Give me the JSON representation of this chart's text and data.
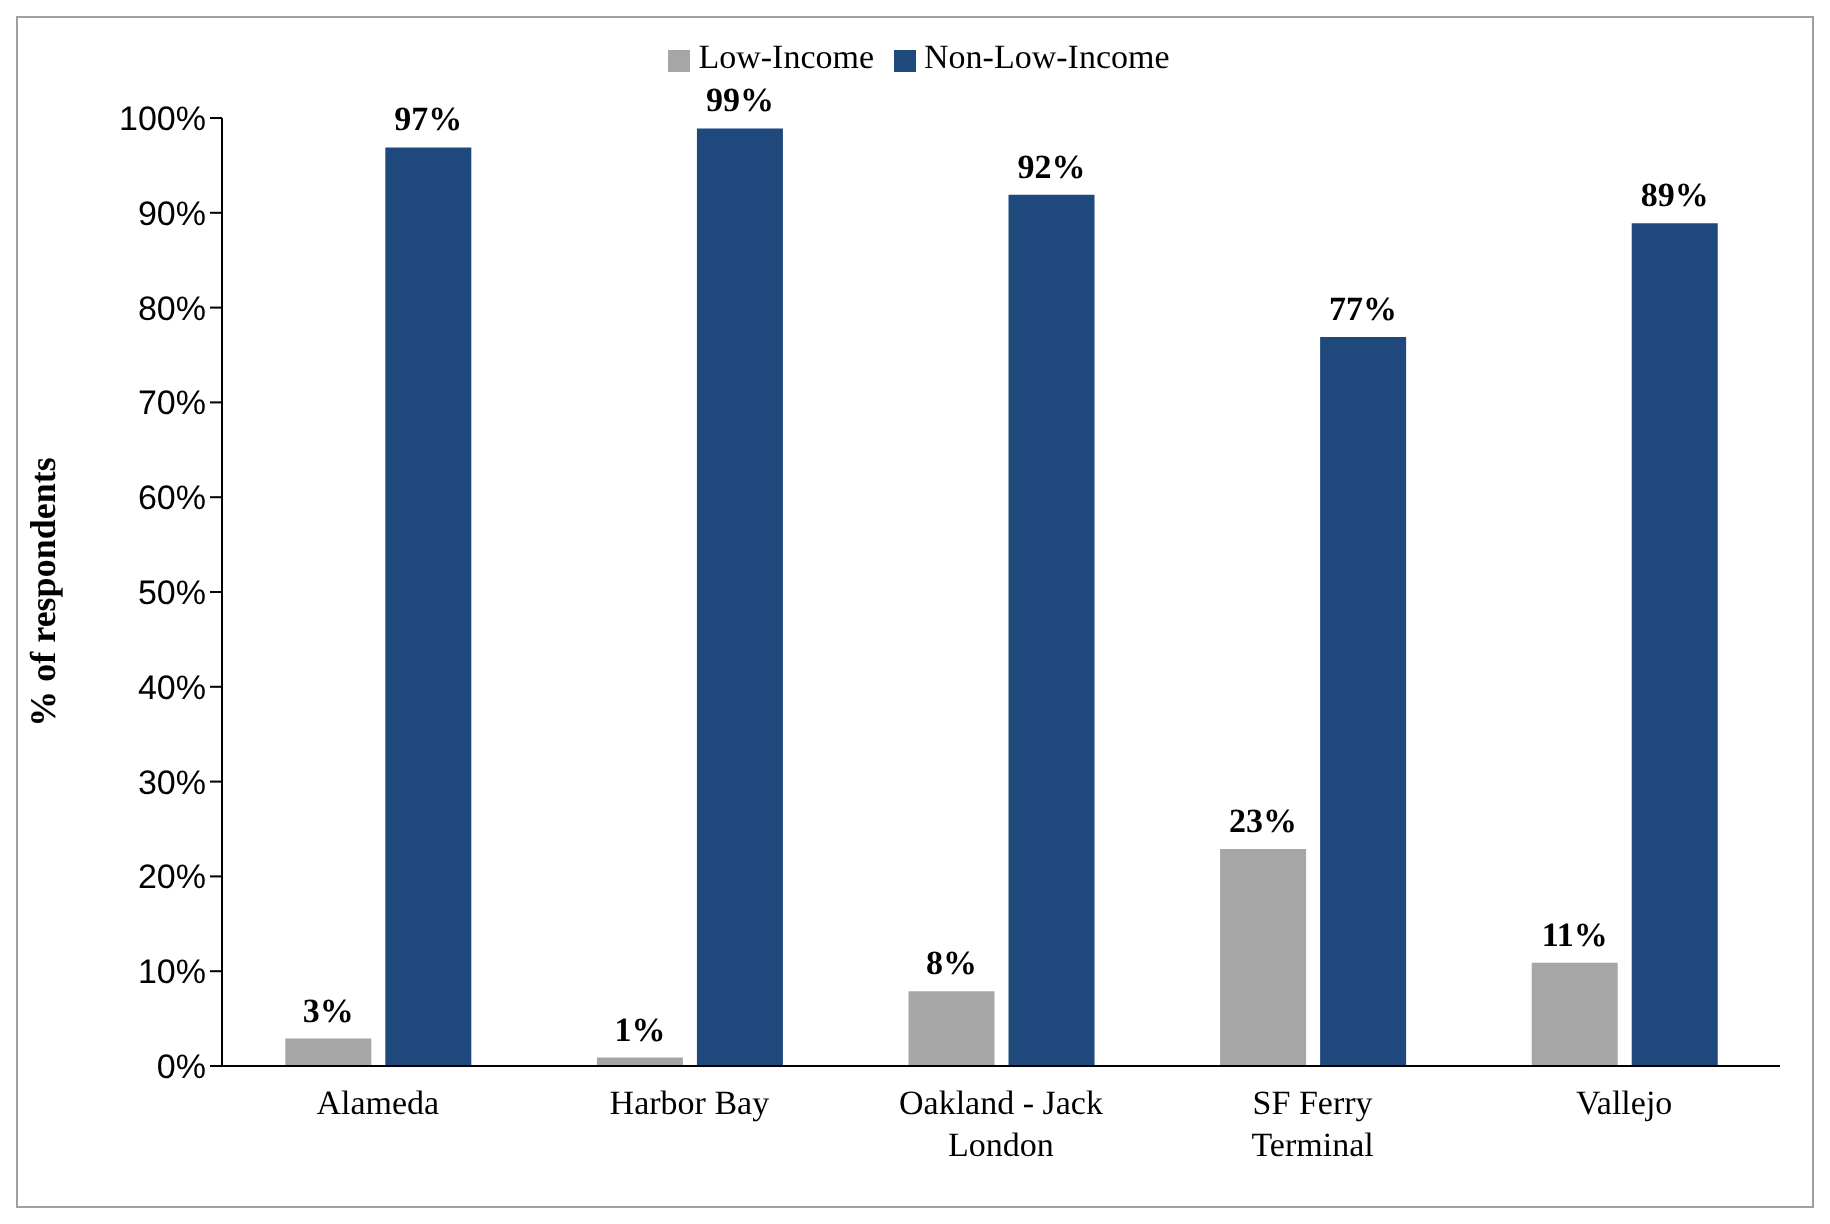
{
  "chart_data": {
    "type": "bar",
    "ylabel": "% of respondents",
    "categories": [
      "Alameda",
      "Harbor Bay",
      "Oakland - Jack London",
      "SF Ferry Terminal",
      "Vallejo"
    ],
    "series": [
      {
        "name": "Low-Income",
        "color": "#a6a6a6",
        "values": [
          3,
          1,
          8,
          23,
          11
        ],
        "value_labels": [
          "3%",
          "1%",
          "8%",
          "23%",
          "11%"
        ]
      },
      {
        "name": "Non-Low-Income",
        "color": "#1f497d",
        "values": [
          97,
          99,
          92,
          77,
          89
        ],
        "value_labels": [
          "97%",
          "99%",
          "92%",
          "77%",
          "89%"
        ]
      }
    ],
    "ylim": [
      0,
      100
    ],
    "yticks": [
      {
        "value": 0,
        "label": "0%"
      },
      {
        "value": 10,
        "label": "10%"
      },
      {
        "value": 20,
        "label": "20%"
      },
      {
        "value": 30,
        "label": "30%"
      },
      {
        "value": 40,
        "label": "40%"
      },
      {
        "value": 50,
        "label": "50%"
      },
      {
        "value": 60,
        "label": "60%"
      },
      {
        "value": 70,
        "label": "70%"
      },
      {
        "value": 80,
        "label": "80%"
      },
      {
        "value": 90,
        "label": "90%"
      },
      {
        "value": 100,
        "label": "100%"
      }
    ],
    "grid": false,
    "legend": "top"
  }
}
